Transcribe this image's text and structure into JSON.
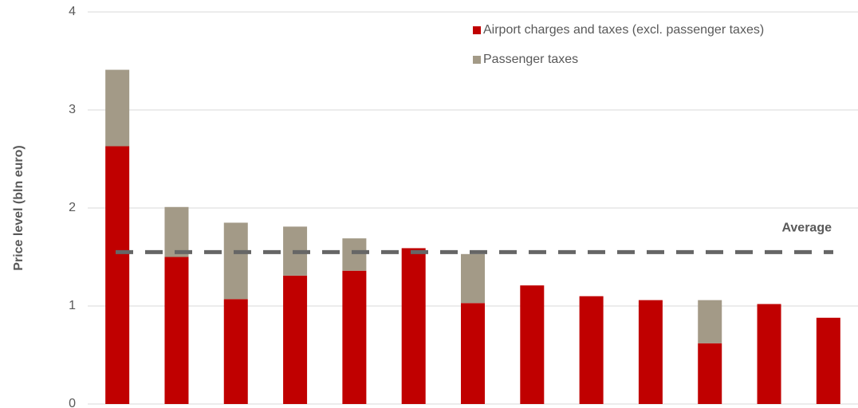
{
  "chart_data": {
    "type": "stacked_bar",
    "categories": [
      null,
      null,
      null,
      null,
      null,
      null,
      null,
      null,
      null,
      null,
      null,
      null,
      null
    ],
    "series": [
      {
        "name": "Airport charges and taxes (excl. passenger taxes)",
        "color": "#c00000",
        "values": [
          2.63,
          1.5,
          1.07,
          1.31,
          1.36,
          1.59,
          1.03,
          1.21,
          1.1,
          1.06,
          0.62,
          1.02,
          0.88
        ]
      },
      {
        "name": "Passenger taxes",
        "color": "#a39a87",
        "values": [
          0.78,
          0.51,
          0.78,
          0.5,
          0.33,
          0,
          0.5,
          0,
          0,
          0,
          0.44,
          0,
          0
        ]
      }
    ],
    "y_label": "Price level (bln euro)",
    "ylim": [
      0,
      4
    ],
    "yticks": [
      0,
      1,
      2,
      3,
      4
    ],
    "grid": true,
    "average": 1.55,
    "average_label": "Average",
    "average_color": "#666666"
  }
}
